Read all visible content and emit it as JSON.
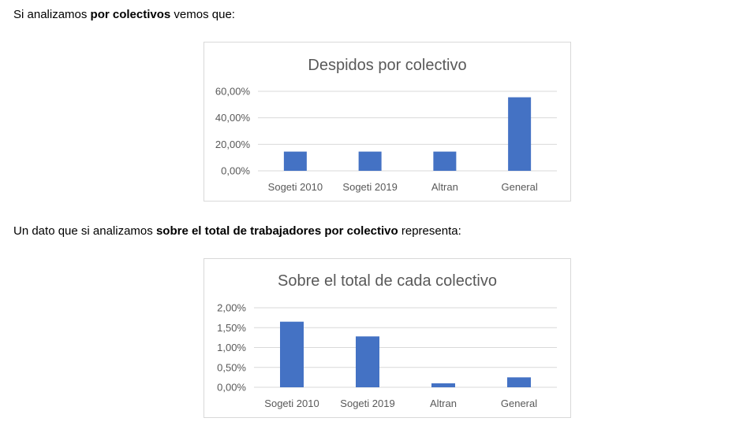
{
  "paragraphs": [
    {
      "before": "Si analizamos ",
      "bold": "por colectivos",
      "after": " vemos que:"
    },
    {
      "before": "Un dato que si analizamos ",
      "bold": "sobre el total de trabajadores por colectivo",
      "after": " representa:"
    }
  ],
  "colors": {
    "bar": "#4472c4",
    "grid": "#d9d9d9",
    "text": "#595959"
  },
  "chart_data": [
    {
      "type": "bar",
      "title": "Despidos por colectivo",
      "categories": [
        "Sogeti 2010",
        "Sogeti 2019",
        "Altran",
        "General"
      ],
      "values": [
        0.145,
        0.145,
        0.145,
        0.555
      ],
      "yticks": [
        "0,00%",
        "20,00%",
        "40,00%",
        "60,00%"
      ],
      "ylim": [
        0,
        0.6
      ],
      "grid": true,
      "legend": "none"
    },
    {
      "type": "bar",
      "title": "Sobre el total de cada colectivo",
      "categories": [
        "Sogeti 2010",
        "Sogeti 2019",
        "Altran",
        "General"
      ],
      "values": [
        0.0165,
        0.0128,
        0.001,
        0.0025
      ],
      "yticks": [
        "0,00%",
        "0,50%",
        "1,00%",
        "1,50%",
        "2,00%"
      ],
      "ylim": [
        0,
        0.02
      ],
      "grid": true,
      "legend": "none"
    }
  ]
}
